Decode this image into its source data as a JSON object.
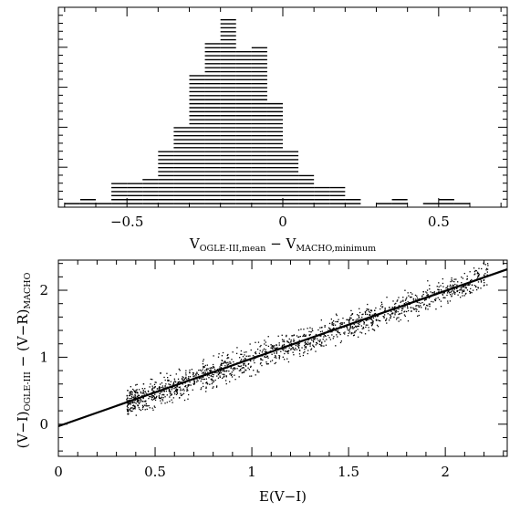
{
  "chart_data": [
    {
      "type": "histogram",
      "xlim": [
        -0.72,
        0.72
      ],
      "x_ticks": [
        -0.5,
        0,
        0.5
      ],
      "x_tick_labels": [
        "−0.5",
        "0",
        "0.5"
      ],
      "xlabel": {
        "main1": "V",
        "sub1": "OGLE-III,mean",
        "dash": " − ",
        "main2": "V",
        "sub2": "MACHO,minimum"
      },
      "bin_width": 0.05,
      "fill": "horizontal hatching",
      "bins": [
        {
          "x0": -0.7,
          "x1": -0.65,
          "count": 1
        },
        {
          "x0": -0.65,
          "x1": -0.6,
          "count": 2
        },
        {
          "x0": -0.6,
          "x1": -0.55,
          "count": 1
        },
        {
          "x0": -0.55,
          "x1": -0.5,
          "count": 6
        },
        {
          "x0": -0.5,
          "x1": -0.45,
          "count": 6
        },
        {
          "x0": -0.45,
          "x1": -0.4,
          "count": 7
        },
        {
          "x0": -0.4,
          "x1": -0.35,
          "count": 14
        },
        {
          "x0": -0.35,
          "x1": -0.3,
          "count": 20
        },
        {
          "x0": -0.3,
          "x1": -0.25,
          "count": 33
        },
        {
          "x0": -0.25,
          "x1": -0.2,
          "count": 41
        },
        {
          "x0": -0.2,
          "x1": -0.15,
          "count": 47
        },
        {
          "x0": -0.15,
          "x1": -0.1,
          "count": 39
        },
        {
          "x0": -0.1,
          "x1": -0.05,
          "count": 40
        },
        {
          "x0": -0.05,
          "x1": 0.0,
          "count": 26
        },
        {
          "x0": 0.0,
          "x1": 0.05,
          "count": 14
        },
        {
          "x0": 0.05,
          "x1": 0.1,
          "count": 8
        },
        {
          "x0": 0.1,
          "x1": 0.15,
          "count": 5
        },
        {
          "x0": 0.15,
          "x1": 0.2,
          "count": 5
        },
        {
          "x0": 0.2,
          "x1": 0.25,
          "count": 2
        },
        {
          "x0": 0.25,
          "x1": 0.3,
          "count": 0
        },
        {
          "x0": 0.3,
          "x1": 0.35,
          "count": 1
        },
        {
          "x0": 0.35,
          "x1": 0.4,
          "count": 2
        },
        {
          "x0": 0.4,
          "x1": 0.45,
          "count": 0
        },
        {
          "x0": 0.45,
          "x1": 0.5,
          "count": 1
        },
        {
          "x0": 0.5,
          "x1": 0.55,
          "count": 2
        },
        {
          "x0": 0.55,
          "x1": 0.6,
          "count": 1
        }
      ],
      "ylim": [
        0,
        50
      ]
    },
    {
      "type": "scatter",
      "xlabel": "E(V−I)",
      "ylabel": {
        "p1": "(V−I)",
        "sub1": "OGLE-III",
        "dash": " − ",
        "p2": "(V−R)",
        "sub2": "MACHO"
      },
      "xlim": [
        0,
        2.32
      ],
      "ylim": [
        -0.48,
        2.45
      ],
      "x_ticks": [
        0,
        0.5,
        1,
        1.5,
        2
      ],
      "x_tick_labels": [
        "0",
        "0.5",
        "1",
        "1.5",
        "2"
      ],
      "y_ticks": [
        0,
        1,
        2
      ],
      "y_tick_labels": [
        "0",
        "1",
        "2"
      ],
      "fit_line": {
        "slope": 1.01,
        "intercept": -0.03
      },
      "points": {
        "n": 1600,
        "x_range": [
          0.35,
          2.22
        ],
        "relation": "y ≈ 1.01·x − 0.03",
        "y_scatter_sigma": 0.14,
        "marker": "dot"
      }
    }
  ]
}
